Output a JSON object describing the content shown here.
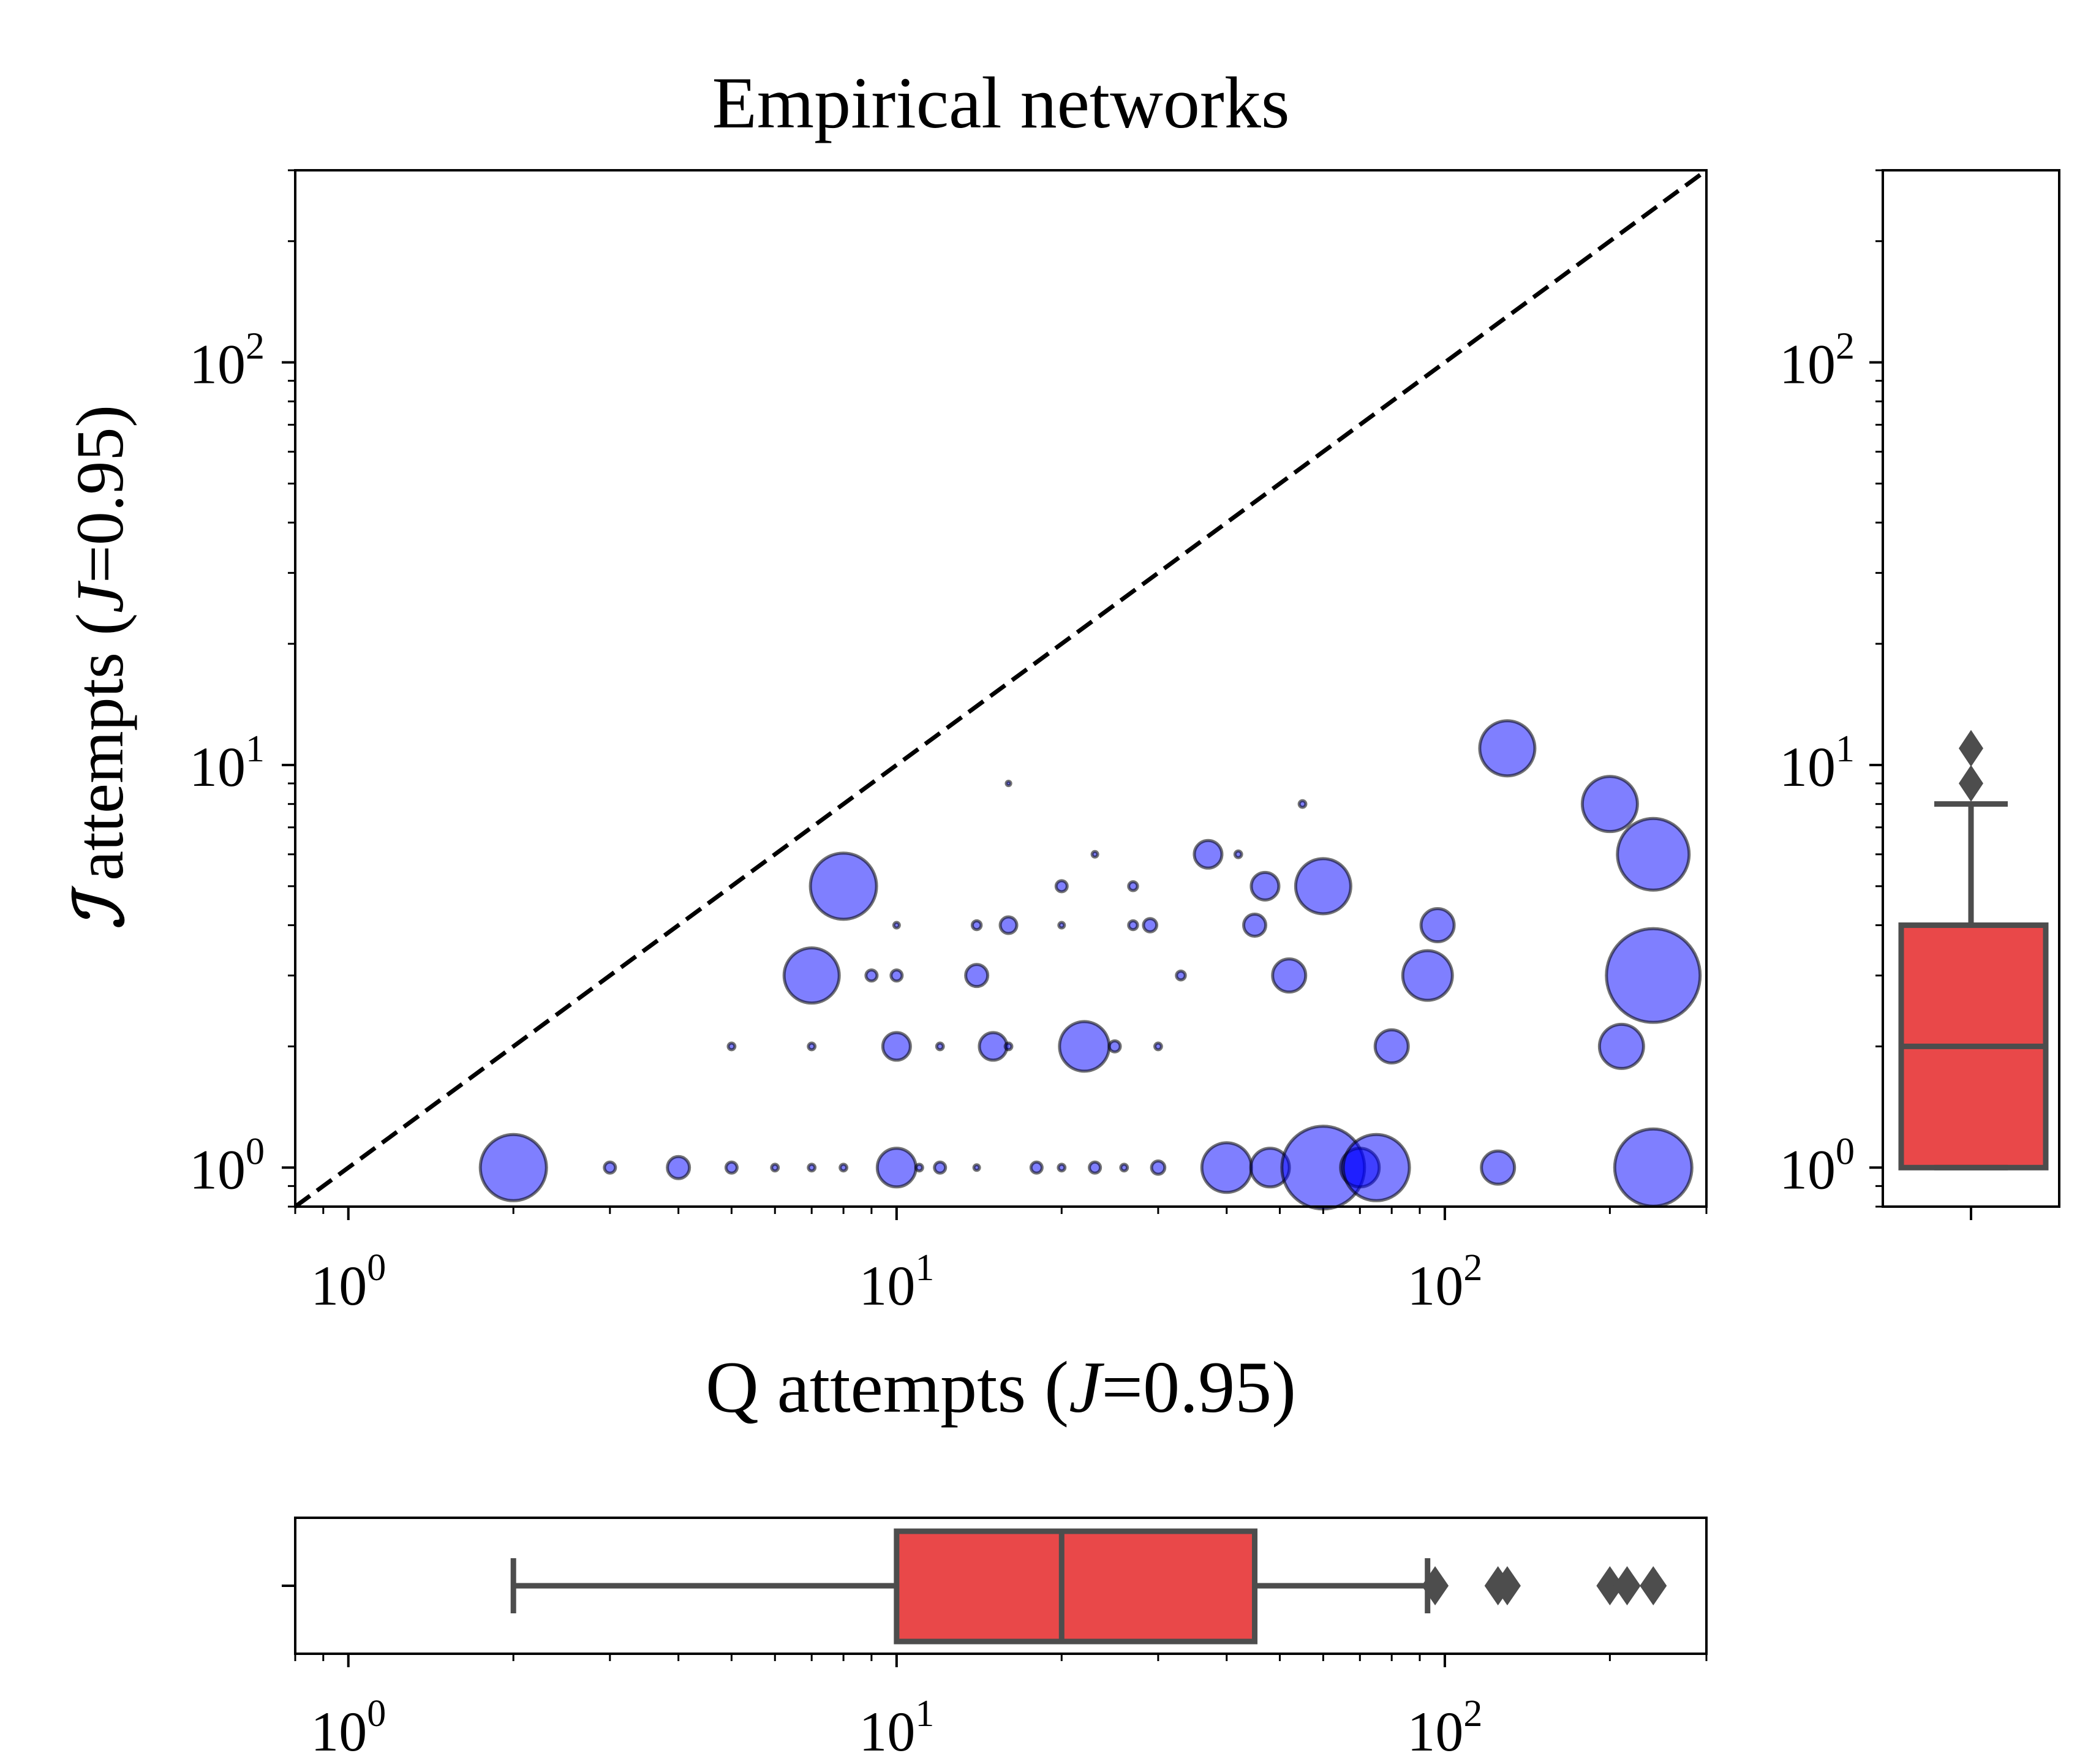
{
  "chart_data": [
    {
      "panel": "main-scatter",
      "type": "scatter",
      "title": "Empirical networks",
      "xlabel": {
        "pre": "Q attempts (",
        "italic": "J",
        "post": "=0.95)"
      },
      "ylabel": {
        "script": "ℐ",
        "pre": " attempts (",
        "italic": "J",
        "post": "=0.95)"
      },
      "xscale": "log",
      "yscale": "log",
      "xlim": [
        0.8,
        300
      ],
      "ylim": [
        0.8,
        300
      ],
      "x_tick_labels": [
        {
          "base": "10",
          "exp": "0",
          "value": 1
        },
        {
          "base": "10",
          "exp": "1",
          "value": 10
        },
        {
          "base": "10",
          "exp": "2",
          "value": 100
        }
      ],
      "y_tick_labels": [
        {
          "base": "10",
          "exp": "0",
          "value": 1
        },
        {
          "base": "10",
          "exp": "1",
          "value": 10
        },
        {
          "base": "10",
          "exp": "2",
          "value": 100
        }
      ],
      "reference_line": {
        "style": "dashed",
        "color": "#000000",
        "equation": "y = x"
      },
      "marker_color": "#0000ff",
      "marker_alpha": 0.5,
      "marker_edge": "#000000",
      "points": [
        {
          "x": 2,
          "y": 1,
          "s": 6
        },
        {
          "x": 3,
          "y": 1,
          "s": 1
        },
        {
          "x": 4,
          "y": 1,
          "s": 2
        },
        {
          "x": 5,
          "y": 1,
          "s": 1
        },
        {
          "x": 6,
          "y": 1,
          "s": 0.6
        },
        {
          "x": 7,
          "y": 1,
          "s": 0.6
        },
        {
          "x": 8,
          "y": 1,
          "s": 0.6
        },
        {
          "x": 10,
          "y": 1,
          "s": 3.5
        },
        {
          "x": 11,
          "y": 1,
          "s": 0.6
        },
        {
          "x": 12,
          "y": 1,
          "s": 1
        },
        {
          "x": 14,
          "y": 1,
          "s": 0.5
        },
        {
          "x": 18,
          "y": 1,
          "s": 1
        },
        {
          "x": 20,
          "y": 1,
          "s": 0.6
        },
        {
          "x": 23,
          "y": 1,
          "s": 1
        },
        {
          "x": 26,
          "y": 1,
          "s": 0.6
        },
        {
          "x": 30,
          "y": 1,
          "s": 1.2
        },
        {
          "x": 40,
          "y": 1,
          "s": 4.5
        },
        {
          "x": 48,
          "y": 1,
          "s": 3.5
        },
        {
          "x": 60,
          "y": 1,
          "s": 7.5
        },
        {
          "x": 70,
          "y": 1,
          "s": 3.5
        },
        {
          "x": 75,
          "y": 1,
          "s": 6
        },
        {
          "x": 125,
          "y": 1,
          "s": 3
        },
        {
          "x": 240,
          "y": 1,
          "s": 7
        },
        {
          "x": 5,
          "y": 2,
          "s": 0.6
        },
        {
          "x": 7,
          "y": 2,
          "s": 0.6
        },
        {
          "x": 10,
          "y": 2,
          "s": 2.5
        },
        {
          "x": 12,
          "y": 2,
          "s": 0.6
        },
        {
          "x": 15,
          "y": 2,
          "s": 2.5
        },
        {
          "x": 16,
          "y": 2,
          "s": 0.6
        },
        {
          "x": 22,
          "y": 2,
          "s": 4.5
        },
        {
          "x": 25,
          "y": 2,
          "s": 1
        },
        {
          "x": 30,
          "y": 2,
          "s": 0.6
        },
        {
          "x": 80,
          "y": 2,
          "s": 3
        },
        {
          "x": 210,
          "y": 2,
          "s": 4
        },
        {
          "x": 7,
          "y": 3,
          "s": 5
        },
        {
          "x": 9,
          "y": 3,
          "s": 1
        },
        {
          "x": 10,
          "y": 3,
          "s": 1
        },
        {
          "x": 14,
          "y": 3,
          "s": 2
        },
        {
          "x": 33,
          "y": 3,
          "s": 0.8
        },
        {
          "x": 52,
          "y": 3,
          "s": 3
        },
        {
          "x": 93,
          "y": 3,
          "s": 4.5
        },
        {
          "x": 240,
          "y": 3,
          "s": 8.5
        },
        {
          "x": 10,
          "y": 4,
          "s": 0.5
        },
        {
          "x": 14,
          "y": 4,
          "s": 0.8
        },
        {
          "x": 16,
          "y": 4,
          "s": 1.5
        },
        {
          "x": 20,
          "y": 4,
          "s": 0.5
        },
        {
          "x": 27,
          "y": 4,
          "s": 0.8
        },
        {
          "x": 29,
          "y": 4,
          "s": 1.2
        },
        {
          "x": 45,
          "y": 4,
          "s": 2
        },
        {
          "x": 97,
          "y": 4,
          "s": 3
        },
        {
          "x": 8,
          "y": 5,
          "s": 6
        },
        {
          "x": 20,
          "y": 5,
          "s": 1
        },
        {
          "x": 27,
          "y": 5,
          "s": 0.8
        },
        {
          "x": 47,
          "y": 5,
          "s": 2.5
        },
        {
          "x": 60,
          "y": 5,
          "s": 5
        },
        {
          "x": 23,
          "y": 6,
          "s": 0.5
        },
        {
          "x": 37,
          "y": 6,
          "s": 2.5
        },
        {
          "x": 42,
          "y": 6,
          "s": 0.6
        },
        {
          "x": 240,
          "y": 6,
          "s": 6.5
        },
        {
          "x": 55,
          "y": 8,
          "s": 0.6
        },
        {
          "x": 200,
          "y": 8,
          "s": 5
        },
        {
          "x": 16,
          "y": 9,
          "s": 0.4
        },
        {
          "x": 130,
          "y": 11,
          "s": 5
        }
      ]
    },
    {
      "panel": "right-boxplot",
      "type": "boxplot",
      "orientation": "vertical",
      "variable": "ℐ attempts",
      "yscale": "log",
      "ylim": [
        0.8,
        300
      ],
      "y_tick_labels": [
        {
          "base": "10",
          "exp": "0",
          "value": 1
        },
        {
          "base": "10",
          "exp": "1",
          "value": 10
        },
        {
          "base": "10",
          "exp": "2",
          "value": 100
        }
      ],
      "box_color": "#e31a1c",
      "q1": 1,
      "median": 2,
      "q3": 4,
      "whisker_low": 1,
      "whisker_high": 8,
      "outliers": [
        9,
        11
      ]
    },
    {
      "panel": "bottom-boxplot",
      "type": "boxplot",
      "orientation": "horizontal",
      "variable": "Q attempts",
      "xscale": "log",
      "xlim": [
        0.8,
        300
      ],
      "x_tick_labels": [
        {
          "base": "10",
          "exp": "0",
          "value": 1
        },
        {
          "base": "10",
          "exp": "1",
          "value": 10
        },
        {
          "base": "10",
          "exp": "2",
          "value": 100
        }
      ],
      "box_color": "#e31a1c",
      "q1": 10,
      "median": 20,
      "q3": 45,
      "whisker_low": 2,
      "whisker_high": 93,
      "outliers": [
        96,
        125,
        130,
        200,
        215,
        240
      ]
    }
  ]
}
